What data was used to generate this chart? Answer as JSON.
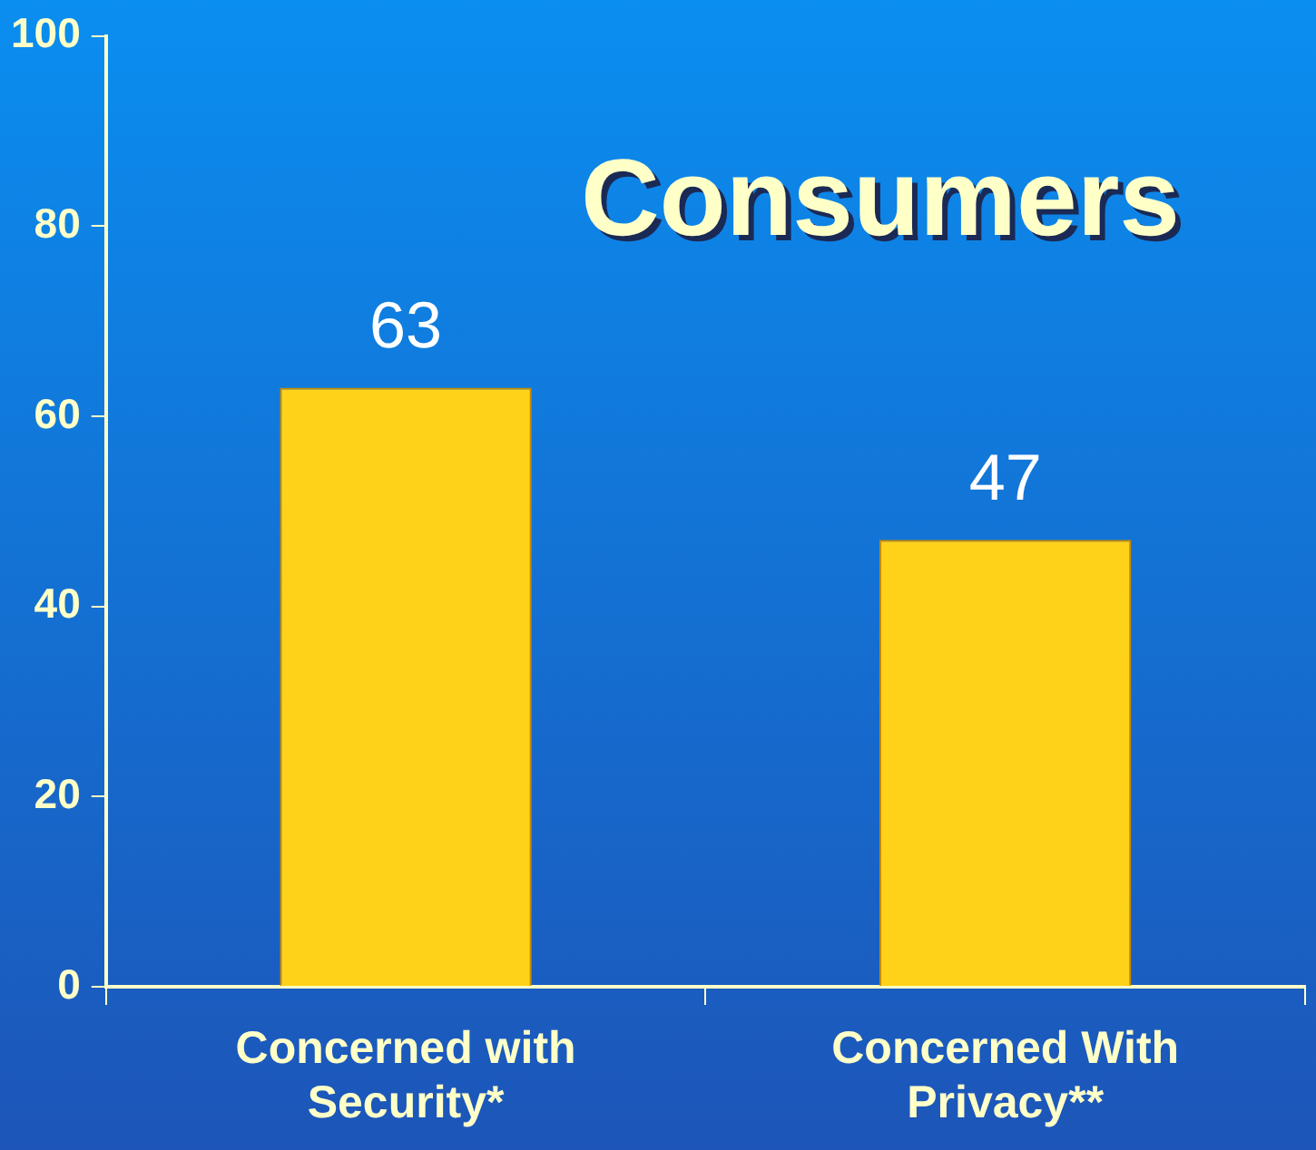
{
  "chart_data": {
    "type": "bar",
    "title": "Consumers",
    "categories": [
      "Concerned with\nSecurity*",
      "Concerned With\nPrivacy**"
    ],
    "values": [
      63,
      47
    ],
    "color": "#ffd21a",
    "ylim": [
      0,
      100
    ],
    "yticks": [
      0,
      20,
      40,
      60,
      80,
      100
    ],
    "grid": false,
    "legend": false,
    "data_labels": true
  }
}
